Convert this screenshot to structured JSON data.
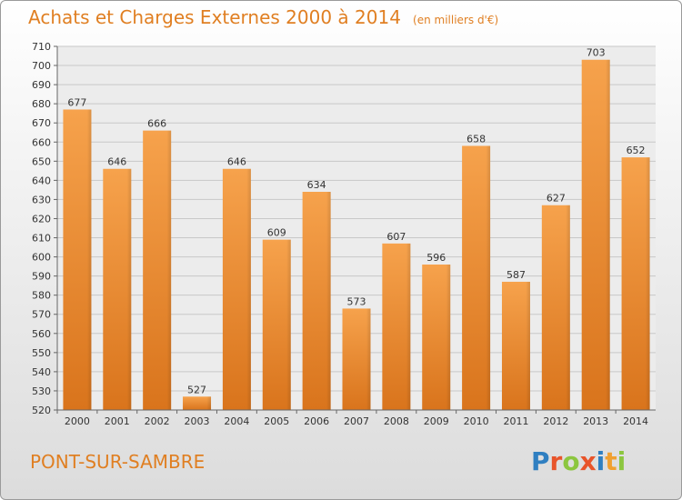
{
  "header": {
    "title": "Achats et Charges Externes 2000 à 2014",
    "unit": "(en milliers d'€)"
  },
  "footer": {
    "place": "PONT-SUR-SAMBRE",
    "logo_letters": [
      "P",
      "r",
      "o",
      "x",
      "i",
      "t",
      "i"
    ],
    "logo_colors": [
      "#2f7fc1",
      "#e8542a",
      "#8cc63f",
      "#e8542a",
      "#2f7fc1",
      "#f0a030",
      "#8cc63f"
    ]
  },
  "colors": {
    "bar_top": "#f6a24c",
    "bar_bottom": "#d9741c",
    "accent": "#e07f22"
  },
  "chart_data": {
    "type": "bar",
    "categories": [
      "2000",
      "2001",
      "2002",
      "2003",
      "2004",
      "2005",
      "2006",
      "2007",
      "2008",
      "2009",
      "2010",
      "2011",
      "2012",
      "2013",
      "2014"
    ],
    "values": [
      677,
      646,
      666,
      527,
      646,
      609,
      634,
      573,
      607,
      596,
      658,
      587,
      627,
      703,
      652
    ],
    "yticks": [
      520,
      530,
      540,
      550,
      560,
      570,
      580,
      590,
      600,
      610,
      620,
      630,
      640,
      650,
      660,
      670,
      680,
      690,
      700,
      710
    ],
    "ylim": [
      520,
      710
    ],
    "grid": true
  }
}
